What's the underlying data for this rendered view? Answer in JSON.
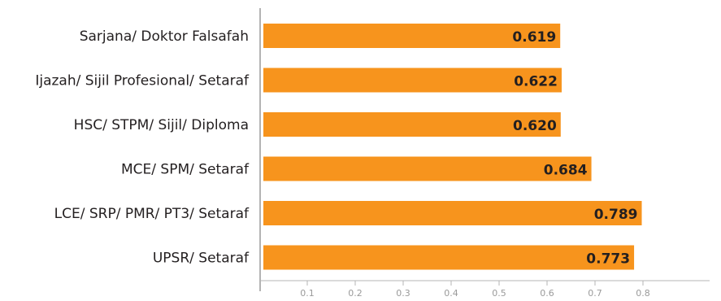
{
  "chart_data": {
    "type": "bar",
    "orientation": "horizontal",
    "categories": [
      "Sarjana/ Doktor Falsafah",
      "Ijazah/ Sijil Profesional/ Setaraf",
      "HSC/ STPM/ Sijil/ Diploma",
      "MCE/ SPM/ Setaraf",
      "LCE/ SRP/ PMR/ PT3/ Setaraf",
      "UPSR/ Setaraf"
    ],
    "values": [
      0.619,
      0.622,
      0.62,
      0.684,
      0.789,
      0.773
    ],
    "value_labels": [
      "0.619",
      "0.622",
      "0.620",
      "0.684",
      "0.789",
      "0.773"
    ],
    "xlim": [
      0,
      0.8
    ],
    "xticks": [
      0.1,
      0.2,
      0.3,
      0.4,
      0.5,
      0.6,
      0.7,
      0.8
    ],
    "xtick_labels": [
      "0.1",
      "0.2",
      "0.3",
      "0.4",
      "0.5",
      "0.6",
      "0.7",
      "0.8"
    ],
    "bar_color": "#f7941d",
    "title": "",
    "xlabel": "",
    "ylabel": "",
    "grid": false,
    "legend": "none"
  }
}
